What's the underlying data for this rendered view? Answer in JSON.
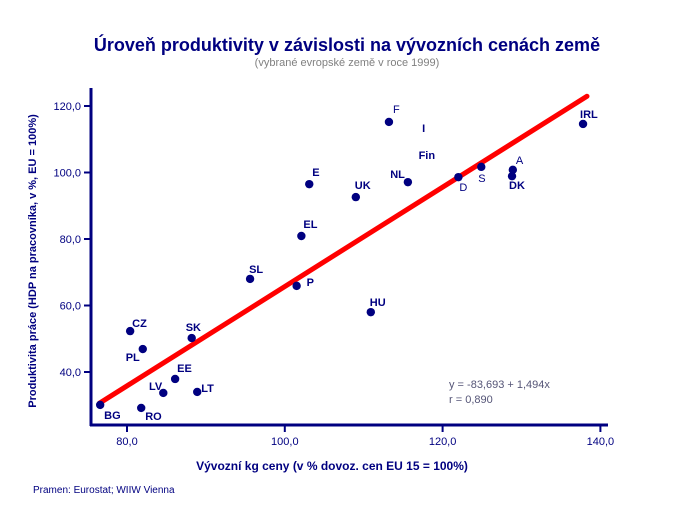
{
  "chart_data": {
    "type": "scatter",
    "title": "Úroveň produktivity v závislosti na vývozních cenách země",
    "subtitle": "(vybrané evropské země v roce 1999)",
    "xlabel": "Vývozní kg ceny (v % dovoz. cen EU 15 = 100%)",
    "ylabel": "Produktivita práce (HDP na pracovníka, v %, EU = 100%)",
    "xlim": [
      75,
      141
    ],
    "ylim": [
      28,
      130
    ],
    "xticks": [
      80,
      100,
      120,
      140
    ],
    "xtick_labels": [
      "80,0",
      "100,0",
      "120,0",
      "140,0"
    ],
    "yticks": [
      40,
      60,
      80,
      100,
      120
    ],
    "ytick_labels": [
      "40,0",
      "60,0",
      "80,0",
      "100,0",
      "120,0"
    ],
    "grid": false,
    "marker_color": "#000080",
    "trend_color": "#ff0000",
    "points": [
      {
        "label": "BG",
        "x": 76.6,
        "y": 30.1
      },
      {
        "label": "RO",
        "x": 81.8,
        "y": 29.2
      },
      {
        "label": "LV",
        "x": 84.6,
        "y": 33.7
      },
      {
        "label": "EE",
        "x": 86.1,
        "y": 37.9
      },
      {
        "label": "LT",
        "x": 88.9,
        "y": 34.0
      },
      {
        "label": "PL",
        "x": 82.0,
        "y": 46.9
      },
      {
        "label": "CZ",
        "x": 80.4,
        "y": 52.3
      },
      {
        "label": "SK",
        "x": 88.2,
        "y": 50.2
      },
      {
        "label": "SL",
        "x": 95.6,
        "y": 68.0
      },
      {
        "label": "P",
        "x": 101.5,
        "y": 65.9
      },
      {
        "label": "EL",
        "x": 102.1,
        "y": 80.9
      },
      {
        "label": "E",
        "x": 103.1,
        "y": 96.5
      },
      {
        "label": "UK",
        "x": 109.0,
        "y": 92.6
      },
      {
        "label": "NL",
        "x": 115.6,
        "y": 97.1
      },
      {
        "label": "F",
        "x": 113.2,
        "y": 115.2
      },
      {
        "label": "D",
        "x": 122.0,
        "y": 98.6
      },
      {
        "label": "S",
        "x": 124.9,
        "y": 101.7
      },
      {
        "label": "A",
        "x": 128.9,
        "y": 100.8
      },
      {
        "label": "DK",
        "x": 128.8,
        "y": 98.9
      },
      {
        "label": "IRL",
        "x": 137.8,
        "y": 114.6
      },
      {
        "label": "HU",
        "x": 110.9,
        "y": 58.0
      }
    ],
    "unmarked_labels": [
      {
        "label": "I",
        "x": 117.6,
        "y": 113.4
      },
      {
        "label": "Fin",
        "x": 118.0,
        "y": 105.3
      }
    ],
    "trendline": {
      "intercept": -83.693,
      "slope": 1.494,
      "x_range": [
        76.5,
        138.3
      ]
    },
    "annotations": [
      "y = -83,693 + 1,494x",
      "r = 0,890"
    ]
  },
  "source": "Pramen: Eurostat;  WIIW Vienna"
}
